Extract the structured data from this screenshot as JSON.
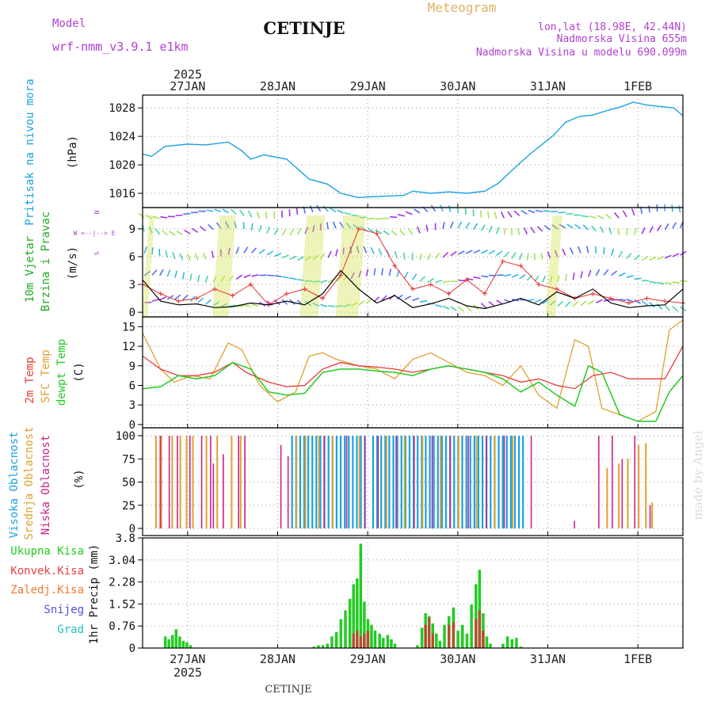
{
  "header": {
    "model_label": "Model",
    "model_name": "wrf-nmm_v3.9.1  e1km",
    "station": "CETINJE",
    "chart_kind": "Meteogram",
    "lonlat": "lon,lat (18.98E, 42.44N)",
    "altitude": "Nadmorska Visina 655m",
    "model_altitude": "Nadmorska Visina u modelu 690.099m"
  },
  "footer": {
    "station": "CETINJE"
  },
  "watermark": "made by Angel",
  "colors": {
    "pressure": "#1aa3e0",
    "wind_speed": "#000000",
    "wind_gust": "#e83030",
    "t2m": "#e83a3a",
    "tsfc": "#e0a030",
    "dewpoint": "#22cc22",
    "cloud_high": "#1aa3e0",
    "cloud_mid": "#e0a030",
    "cloud_low": "#cc2288",
    "precip_total": "#22cc22",
    "precip_conv": "#e84040",
    "precip_frz": "#f07830",
    "precip_snow": "#5050e0",
    "precip_graupel": "#20c0c0",
    "title_purple": "#b040d0",
    "title_orange": "#e0b060"
  },
  "chart_data": {
    "type": "meteogram",
    "time_axis": {
      "top_year": "2025",
      "bottom_year": "2025",
      "day_labels": [
        "27JAN",
        "28JAN",
        "29JAN",
        "30JAN",
        "31JAN",
        "1FEB"
      ],
      "day_positions": [
        0.5,
        1.5,
        2.5,
        3.5,
        4.5,
        5.5
      ],
      "range": [
        0,
        6.0
      ]
    },
    "pressure": {
      "label": "Pritisak na nivou mora",
      "unit": "(hPa)",
      "ylim": [
        1014,
        1029.8
      ],
      "ticks": [
        1016,
        1020,
        1024,
        1028
      ],
      "x": [
        0,
        0.1,
        0.25,
        0.5,
        0.7,
        0.95,
        1.1,
        1.2,
        1.35,
        1.6,
        1.85,
        2.05,
        2.2,
        2.4,
        2.5,
        2.7,
        2.9,
        3.0,
        3.2,
        3.4,
        3.6,
        3.8,
        3.95,
        4.1,
        4.3,
        4.55,
        4.7,
        4.85,
        5.0,
        5.15,
        5.3,
        5.45,
        5.6,
        5.75,
        5.9,
        6.0
      ],
      "y": [
        1021.5,
        1021.2,
        1022.6,
        1022.9,
        1022.8,
        1023.2,
        1022.0,
        1020.8,
        1021.4,
        1020.8,
        1018.0,
        1017.3,
        1016.0,
        1015.4,
        1015.5,
        1015.6,
        1015.7,
        1016.3,
        1016.0,
        1016.2,
        1016.0,
        1016.3,
        1017.4,
        1019.2,
        1021.5,
        1024.0,
        1026.0,
        1026.8,
        1027.0,
        1027.6,
        1028.1,
        1028.8,
        1028.4,
        1028.2,
        1028.0,
        1026.9
      ]
    },
    "wind": {
      "label_line1": "10m Vjetar",
      "label_line2": "Brzina i Pravac",
      "unit": "(m/s)",
      "compass": {
        "n": "N",
        "s": "S",
        "w": "W",
        "e": "E",
        "row": "W <--|--> E"
      },
      "ylim": [
        -0.5,
        11.3
      ],
      "ticks": [
        0,
        3,
        6,
        9
      ],
      "speed_x": [
        0,
        0.2,
        0.4,
        0.6,
        0.8,
        1.0,
        1.2,
        1.4,
        1.6,
        1.8,
        2.0,
        2.2,
        2.4,
        2.6,
        2.8,
        3.0,
        3.2,
        3.4,
        3.6,
        3.8,
        4.0,
        4.2,
        4.4,
        4.6,
        4.8,
        5.0,
        5.2,
        5.4,
        5.6,
        5.8,
        6.0
      ],
      "speed_y": [
        3.5,
        1.2,
        0.8,
        0.9,
        0.5,
        0.6,
        1.0,
        0.8,
        1.2,
        0.8,
        2.0,
        4.5,
        2.5,
        1.0,
        1.8,
        0.5,
        0.9,
        1.5,
        0.7,
        0.4,
        0.9,
        1.5,
        0.8,
        2.2,
        1.5,
        2.5,
        1.0,
        0.5,
        0.7,
        0.8,
        2.5
      ],
      "gust_x": [
        0,
        0.2,
        0.4,
        0.6,
        0.8,
        1.0,
        1.2,
        1.4,
        1.6,
        1.8,
        2.0,
        2.2,
        2.4,
        2.6,
        2.8,
        3.0,
        3.2,
        3.4,
        3.6,
        3.8,
        4.0,
        4.2,
        4.4,
        4.6,
        4.8,
        5.0,
        5.2,
        5.4,
        5.6,
        5.8,
        6.0
      ],
      "gust_y": [
        3.0,
        2.0,
        1.2,
        1.5,
        2.5,
        1.8,
        3.0,
        0.8,
        2.0,
        2.5,
        1.5,
        4.0,
        9.0,
        8.5,
        5.0,
        2.5,
        3.0,
        2.0,
        3.5,
        2.0,
        5.5,
        5.0,
        3.0,
        2.5,
        1.5,
        2.0,
        1.5,
        1.0,
        1.5,
        1.2,
        1.0
      ]
    },
    "temperature": {
      "label_t2m": "2m Temp",
      "label_sfc": "SFC Temp",
      "label_dew": "dewpt Temp",
      "unit": "(C)",
      "ylim": [
        -0.5,
        16.5
      ],
      "ticks": [
        0,
        3,
        6,
        9,
        12,
        15
      ],
      "t2m_x": [
        0,
        0.2,
        0.4,
        0.6,
        0.8,
        1.0,
        1.15,
        1.4,
        1.6,
        1.8,
        2.0,
        2.2,
        2.4,
        2.6,
        2.8,
        3.0,
        3.2,
        3.4,
        3.6,
        3.8,
        4.0,
        4.2,
        4.4,
        4.6,
        4.8,
        5.0,
        5.2,
        5.4,
        5.6,
        5.8,
        6.0
      ],
      "t2m_y": [
        10.5,
        8.5,
        7.5,
        7.5,
        8.0,
        9.5,
        8.0,
        6.5,
        5.8,
        6.0,
        8.5,
        9.5,
        9.0,
        8.8,
        8.5,
        8.0,
        8.5,
        9.0,
        8.5,
        8.0,
        7.5,
        6.5,
        7.0,
        6.0,
        5.5,
        7.5,
        8.0,
        7.0,
        7.0,
        7.0,
        12.0
      ],
      "tsfc_x": [
        0,
        0.2,
        0.35,
        0.55,
        0.75,
        0.95,
        1.1,
        1.3,
        1.5,
        1.7,
        1.85,
        2.0,
        2.15,
        2.4,
        2.6,
        2.8,
        3.0,
        3.2,
        3.4,
        3.6,
        3.8,
        4.0,
        4.2,
        4.4,
        4.6,
        4.8,
        4.95,
        5.1,
        5.3,
        5.5,
        5.7,
        5.85,
        6.0
      ],
      "tsfc_y": [
        14.0,
        8.5,
        6.5,
        7.5,
        7.0,
        12.5,
        11.5,
        6.0,
        3.5,
        5.0,
        10.5,
        11.0,
        10.0,
        9.0,
        8.5,
        7.0,
        10.0,
        11.0,
        9.5,
        8.0,
        7.5,
        6.0,
        9.0,
        4.5,
        2.5,
        13.0,
        12.0,
        2.5,
        1.5,
        0.5,
        2.0,
        14.5,
        16.0
      ],
      "dew_x": [
        0,
        0.2,
        0.4,
        0.6,
        0.8,
        1.0,
        1.2,
        1.4,
        1.6,
        1.8,
        2.0,
        2.2,
        2.4,
        2.6,
        2.8,
        3.0,
        3.2,
        3.4,
        3.6,
        3.8,
        4.0,
        4.2,
        4.4,
        4.6,
        4.8,
        4.95,
        5.1,
        5.3,
        5.5,
        5.7,
        5.85,
        6.0
      ],
      "dew_y": [
        5.5,
        5.8,
        7.5,
        7.0,
        7.5,
        9.5,
        8.5,
        5.0,
        4.5,
        4.8,
        8.0,
        8.5,
        8.5,
        8.2,
        8.0,
        7.5,
        8.5,
        9.0,
        8.5,
        8.0,
        7.0,
        5.0,
        6.5,
        4.5,
        2.8,
        9.0,
        8.0,
        1.5,
        0.5,
        0.5,
        5.0,
        7.5
      ]
    },
    "clouds": {
      "label_high": "Visoka Oblacnost",
      "label_mid": "Srednja Oblacnost",
      "label_low": "Niska Oblacnost",
      "unit": "(%)",
      "ylim": [
        0,
        100
      ],
      "ticks": [
        0,
        25,
        50,
        75,
        100
      ],
      "high_ranges": [
        [
          1.65,
          2.5
        ],
        [
          2.55,
          4.25
        ]
      ],
      "mid_bars": [
        [
          0.14,
          100
        ],
        [
          0.2,
          100
        ],
        [
          0.32,
          100
        ],
        [
          0.41,
          100
        ],
        [
          0.48,
          100
        ],
        [
          0.55,
          100
        ],
        [
          0.7,
          100
        ],
        [
          0.82,
          100
        ],
        [
          0.98,
          100
        ],
        [
          1.08,
          100
        ],
        [
          1.7,
          100
        ],
        [
          1.8,
          100
        ],
        [
          1.95,
          100
        ],
        [
          2.1,
          100
        ],
        [
          2.4,
          100
        ],
        [
          2.7,
          100
        ],
        [
          2.9,
          100
        ],
        [
          3.1,
          100
        ],
        [
          3.3,
          100
        ],
        [
          3.5,
          100
        ],
        [
          3.7,
          100
        ],
        [
          3.9,
          100
        ],
        [
          4.1,
          100
        ],
        [
          5.15,
          65
        ],
        [
          5.28,
          70
        ],
        [
          5.38,
          75
        ],
        [
          5.5,
          90
        ],
        [
          5.58,
          92
        ],
        [
          5.65,
          28
        ]
      ],
      "low_bars": [
        [
          0.18,
          100
        ],
        [
          0.28,
          100
        ],
        [
          0.37,
          100
        ],
        [
          0.51,
          100
        ],
        [
          0.64,
          100
        ],
        [
          0.74,
          100
        ],
        [
          0.77,
          70
        ],
        [
          0.88,
          80
        ],
        [
          1.05,
          100
        ],
        [
          1.12,
          100
        ],
        [
          1.52,
          90
        ],
        [
          1.6,
          78
        ],
        [
          2.0,
          100
        ],
        [
          2.25,
          100
        ],
        [
          2.45,
          100
        ],
        [
          2.6,
          100
        ],
        [
          2.8,
          100
        ],
        [
          3.0,
          100
        ],
        [
          3.2,
          100
        ],
        [
          3.4,
          100
        ],
        [
          3.6,
          100
        ],
        [
          3.8,
          100
        ],
        [
          4.0,
          100
        ],
        [
          4.3,
          100
        ],
        [
          4.78,
          8
        ],
        [
          5.05,
          100
        ],
        [
          5.2,
          100
        ],
        [
          5.31,
          75
        ],
        [
          5.45,
          100
        ],
        [
          5.62,
          25
        ]
      ]
    },
    "precip": {
      "label_total": "Ukupna Kisa",
      "label_conv": "Konvek.Kisa",
      "label_frz": "Zaledj.Kisa",
      "label_snow": "Snijeg",
      "label_graupel": "Grad",
      "axis_label": "1hr Precip (mm)",
      "ylim": [
        0,
        3.8
      ],
      "ticks": [
        0,
        0.76,
        1.52,
        2.28,
        3.04,
        3.8
      ],
      "tick_labels": [
        "0",
        "0.76",
        "1.52",
        "2.28",
        "3.04",
        "3.8"
      ],
      "total_bars": [
        [
          0.25,
          0.4
        ],
        [
          0.29,
          0.3
        ],
        [
          0.33,
          0.45
        ],
        [
          0.37,
          0.65
        ],
        [
          0.41,
          0.4
        ],
        [
          0.45,
          0.25
        ],
        [
          0.49,
          0.2
        ],
        [
          0.53,
          0.1
        ],
        [
          1.9,
          0.05
        ],
        [
          1.95,
          0.1
        ],
        [
          2.0,
          0.1
        ],
        [
          2.05,
          0.15
        ],
        [
          2.1,
          0.4
        ],
        [
          2.15,
          0.55
        ],
        [
          2.2,
          1.0
        ],
        [
          2.25,
          1.3
        ],
        [
          2.3,
          1.7
        ],
        [
          2.34,
          2.2
        ],
        [
          2.38,
          2.4
        ],
        [
          2.42,
          3.6
        ],
        [
          2.46,
          1.6
        ],
        [
          2.5,
          1.0
        ],
        [
          2.54,
          0.8
        ],
        [
          2.58,
          0.6
        ],
        [
          2.63,
          0.5
        ],
        [
          2.67,
          0.35
        ],
        [
          2.72,
          0.45
        ],
        [
          2.76,
          0.3
        ],
        [
          2.8,
          0.15
        ],
        [
          3.05,
          0.1
        ],
        [
          3.1,
          0.7
        ],
        [
          3.14,
          1.2
        ],
        [
          3.18,
          1.1
        ],
        [
          3.22,
          0.85
        ],
        [
          3.26,
          0.5
        ],
        [
          3.3,
          0.25
        ],
        [
          3.35,
          0.8
        ],
        [
          3.4,
          1.1
        ],
        [
          3.45,
          1.4
        ],
        [
          3.5,
          0.6
        ],
        [
          3.55,
          0.8
        ],
        [
          3.6,
          0.5
        ],
        [
          3.65,
          1.5
        ],
        [
          3.7,
          2.2
        ],
        [
          3.74,
          2.7
        ],
        [
          3.78,
          1.2
        ],
        [
          3.82,
          0.4
        ],
        [
          3.86,
          0.15
        ],
        [
          4.0,
          0.15
        ],
        [
          4.05,
          0.4
        ],
        [
          4.1,
          0.3
        ],
        [
          4.15,
          0.35
        ],
        [
          4.2,
          0.05
        ]
      ],
      "conv_bars": [
        [
          2.34,
          0.5
        ],
        [
          2.38,
          0.6
        ],
        [
          2.42,
          0.4
        ],
        [
          2.46,
          0.5
        ],
        [
          2.5,
          0.6
        ],
        [
          3.14,
          0.8
        ],
        [
          3.18,
          1.05
        ],
        [
          3.22,
          0.5
        ],
        [
          3.4,
          0.8
        ],
        [
          3.45,
          0.9
        ],
        [
          3.7,
          1.0
        ],
        [
          3.74,
          1.3
        ],
        [
          3.78,
          0.6
        ]
      ]
    }
  }
}
